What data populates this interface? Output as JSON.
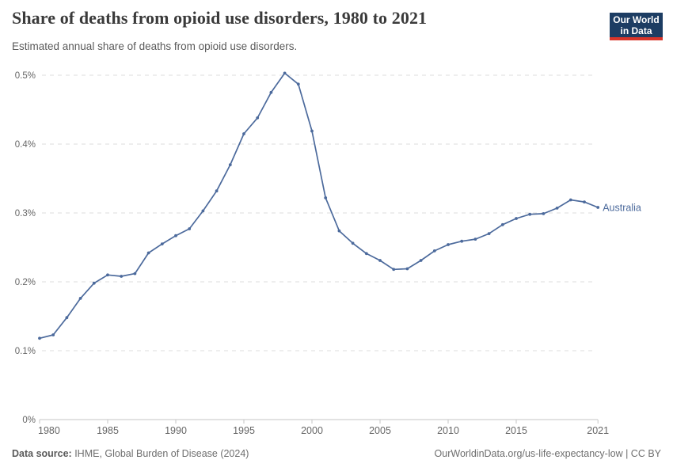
{
  "header": {
    "title": "Share of deaths from opioid use disorders, 1980 to 2021",
    "subtitle": "Estimated annual share of deaths from opioid use disorders.",
    "logo": {
      "line1": "Our World",
      "line2": "in Data"
    }
  },
  "chart_data": {
    "type": "line",
    "title": "Share of deaths from opioid use disorders, 1980 to 2021",
    "subtitle": "Estimated annual share of deaths from opioid use disorders.",
    "unit": "percent of deaths",
    "x": [
      1980,
      1981,
      1982,
      1983,
      1984,
      1985,
      1986,
      1987,
      1988,
      1989,
      1990,
      1991,
      1992,
      1993,
      1994,
      1995,
      1996,
      1997,
      1998,
      1999,
      2000,
      2001,
      2002,
      2003,
      2004,
      2005,
      2006,
      2007,
      2008,
      2009,
      2010,
      2011,
      2012,
      2013,
      2014,
      2015,
      2016,
      2017,
      2018,
      2019,
      2020,
      2021
    ],
    "series": [
      {
        "name": "Australia",
        "color": "#4c6a9c",
        "values": [
          0.118,
          0.123,
          0.148,
          0.176,
          0.198,
          0.21,
          0.208,
          0.212,
          0.242,
          0.255,
          0.267,
          0.277,
          0.303,
          0.332,
          0.37,
          0.415,
          0.438,
          0.475,
          0.503,
          0.487,
          0.419,
          0.322,
          0.274,
          0.256,
          0.241,
          0.231,
          0.218,
          0.219,
          0.231,
          0.245,
          0.254,
          0.259,
          0.262,
          0.27,
          0.283,
          0.292,
          0.298,
          0.299,
          0.307,
          0.319,
          0.316,
          0.308
        ]
      }
    ],
    "xlabel": "",
    "ylabel": "",
    "ylim": [
      0,
      0.52
    ],
    "xlim": [
      1980,
      2021
    ],
    "grid": "horizontal-dashed",
    "legend_position": "end-of-line-label",
    "yticks": {
      "values": [
        0,
        0.1,
        0.2,
        0.3,
        0.4,
        0.5
      ],
      "labels": [
        "0%",
        "0.1%",
        "0.2%",
        "0.3%",
        "0.4%",
        "0.5%"
      ]
    },
    "xticks": {
      "values": [
        1980,
        1985,
        1990,
        1995,
        2000,
        2005,
        2010,
        2015,
        2021
      ],
      "labels": [
        "1980",
        "1985",
        "1990",
        "1995",
        "2000",
        "2005",
        "2010",
        "2015",
        "2021"
      ]
    }
  },
  "colors": {
    "line": "#4c6a9c",
    "grid": "#dedede",
    "axis": "#c4c4c4",
    "tick_text": "#666666",
    "logo_bg": "#1d3d63",
    "logo_red": "#d8352a"
  },
  "footer": {
    "source_label": "Data source:",
    "source_text": " IHME, Global Burden of Disease (2024)",
    "right_text": "OurWorldinData.org/us-life-expectancy-low | CC BY"
  }
}
